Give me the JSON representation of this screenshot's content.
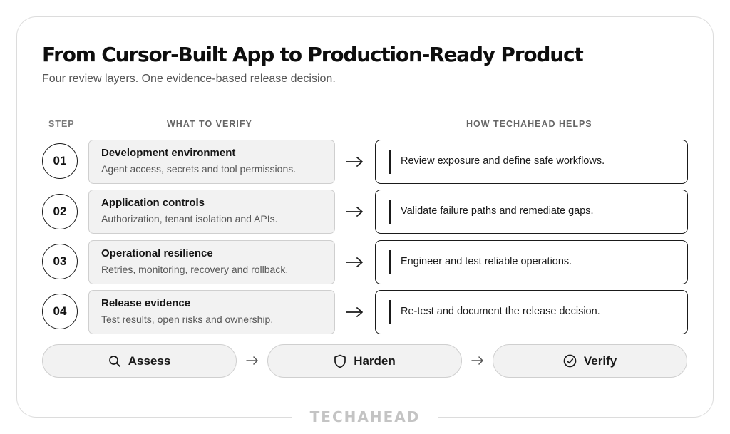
{
  "header": {
    "title": "From Cursor-Built App to Production-Ready Product",
    "subtitle": "Four review layers. One evidence-based release decision."
  },
  "columns": {
    "step": "STEP",
    "verify": "WHAT TO VERIFY",
    "helps": "HOW TECHAHEAD HELPS"
  },
  "rows": [
    {
      "step": "01",
      "title": "Development environment",
      "subtitle": "Agent access, secrets and tool permissions.",
      "help": "Review exposure and define safe workflows."
    },
    {
      "step": "02",
      "title": "Application controls",
      "subtitle": "Authorization, tenant isolation and APIs.",
      "help": "Validate failure paths and remediate gaps."
    },
    {
      "step": "03",
      "title": "Operational resilience",
      "subtitle": "Retries, monitoring, recovery and rollback.",
      "help": "Engineer and test reliable operations."
    },
    {
      "step": "04",
      "title": "Release evidence",
      "subtitle": "Test results, open risks and ownership.",
      "help": "Re-test and document the release decision."
    }
  ],
  "phases": [
    {
      "label": "Assess",
      "icon": "search-icon"
    },
    {
      "label": "Harden",
      "icon": "shield-icon"
    },
    {
      "label": "Verify",
      "icon": "check-circle-icon"
    }
  ],
  "footer": {
    "brand": "TECHAHEAD"
  }
}
